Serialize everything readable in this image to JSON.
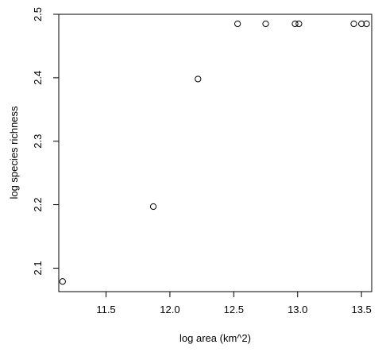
{
  "chart_data": {
    "type": "scatter",
    "title": "",
    "xlabel": "log area (km^2)",
    "ylabel": "log species richness",
    "xlim": [
      11.13,
      13.58
    ],
    "ylim": [
      2.063,
      2.5
    ],
    "xticks": [
      {
        "value": 11.5,
        "label": "11.5"
      },
      {
        "value": 12.0,
        "label": "12.0"
      },
      {
        "value": 12.5,
        "label": "12.5"
      },
      {
        "value": 13.0,
        "label": "13.0"
      },
      {
        "value": 13.5,
        "label": "13.5"
      }
    ],
    "yticks": [
      {
        "value": 2.1,
        "label": "2.1"
      },
      {
        "value": 2.2,
        "label": "2.2"
      },
      {
        "value": 2.3,
        "label": "2.3"
      },
      {
        "value": 2.4,
        "label": "2.4"
      },
      {
        "value": 2.5,
        "label": "2.5"
      }
    ],
    "points": [
      {
        "x": 11.16,
        "y": 2.079
      },
      {
        "x": 11.87,
        "y": 2.197
      },
      {
        "x": 12.22,
        "y": 2.398
      },
      {
        "x": 12.53,
        "y": 2.485
      },
      {
        "x": 12.75,
        "y": 2.485
      },
      {
        "x": 12.98,
        "y": 2.485
      },
      {
        "x": 13.01,
        "y": 2.485
      },
      {
        "x": 13.44,
        "y": 2.485
      },
      {
        "x": 13.5,
        "y": 2.485
      },
      {
        "x": 13.54,
        "y": 2.485
      }
    ],
    "grid": false,
    "marker": "open-circle"
  }
}
